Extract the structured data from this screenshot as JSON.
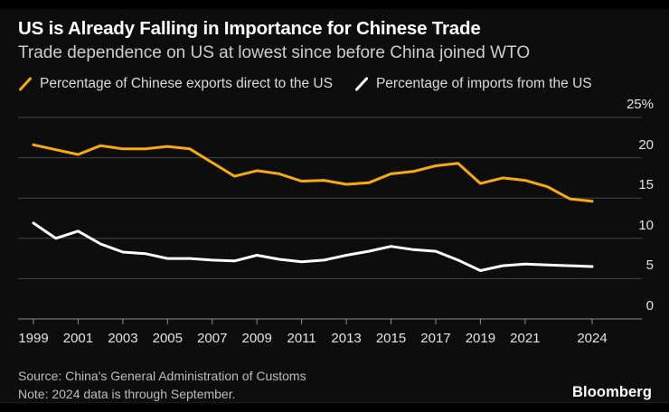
{
  "header": {
    "title": "US is Already Falling in Importance for Chinese Trade",
    "subtitle": "Trade dependence on US at lowest since before China joined WTO"
  },
  "legend": [
    {
      "label": "Percentage of Chinese exports direct to the US",
      "color": "#F7AB0C",
      "icon": "slash-icon"
    },
    {
      "label": "Percentage of imports from the US",
      "color": "#FFFFFF",
      "icon": "slash-icon"
    }
  ],
  "chart_data": {
    "type": "line",
    "x": [
      1999,
      2000,
      2001,
      2002,
      2003,
      2004,
      2005,
      2006,
      2007,
      2008,
      2009,
      2010,
      2011,
      2012,
      2013,
      2014,
      2015,
      2016,
      2017,
      2018,
      2019,
      2020,
      2021,
      2022,
      2023,
      2024
    ],
    "series": [
      {
        "name": "Percentage of Chinese exports direct to the US",
        "color": "#F7AB0C",
        "values": [
          21.6,
          21.0,
          20.4,
          21.5,
          21.1,
          21.1,
          21.4,
          21.1,
          19.4,
          17.7,
          18.4,
          18.0,
          17.1,
          17.2,
          16.7,
          16.9,
          18.0,
          18.3,
          19.0,
          19.3,
          16.8,
          17.5,
          17.2,
          16.4,
          14.9,
          14.6
        ]
      },
      {
        "name": "Percentage of imports from the US",
        "color": "#FFFFFF",
        "values": [
          11.9,
          10.0,
          10.9,
          9.3,
          8.3,
          8.1,
          7.5,
          7.5,
          7.3,
          7.2,
          7.9,
          7.4,
          7.1,
          7.3,
          7.9,
          8.4,
          9.0,
          8.6,
          8.4,
          7.3,
          6.0,
          6.6,
          6.8,
          6.7,
          6.6,
          6.5
        ]
      }
    ],
    "ylim": [
      0,
      25
    ],
    "y_ticks": [
      {
        "value": 0,
        "label": "0"
      },
      {
        "value": 5,
        "label": "5"
      },
      {
        "value": 10,
        "label": "10"
      },
      {
        "value": 15,
        "label": "15"
      },
      {
        "value": 20,
        "label": "20"
      },
      {
        "value": 25,
        "label": "25%"
      }
    ],
    "x_ticks": [
      {
        "value": 1999,
        "label": "1999"
      },
      {
        "value": 2001,
        "label": "2001"
      },
      {
        "value": 2003,
        "label": "2003"
      },
      {
        "value": 2005,
        "label": "2005"
      },
      {
        "value": 2007,
        "label": "2007"
      },
      {
        "value": 2009,
        "label": "2009"
      },
      {
        "value": 2011,
        "label": "2011"
      },
      {
        "value": 2013,
        "label": "2013"
      },
      {
        "value": 2015,
        "label": "2015"
      },
      {
        "value": 2017,
        "label": "2017"
      },
      {
        "value": 2019,
        "label": "2019"
      },
      {
        "value": 2021,
        "label": "2021"
      },
      {
        "value": 2024,
        "label": "2024"
      }
    ],
    "grid": true,
    "legend_position": "top",
    "colors": {
      "grid": "#464646",
      "baseline": "#8F8F8F",
      "tick_label": "#E3E3E3"
    }
  },
  "footer": {
    "source": "Source: China's General Administration of Customs",
    "note": "Note: 2024 data is through September.",
    "brand": "Bloomberg"
  }
}
